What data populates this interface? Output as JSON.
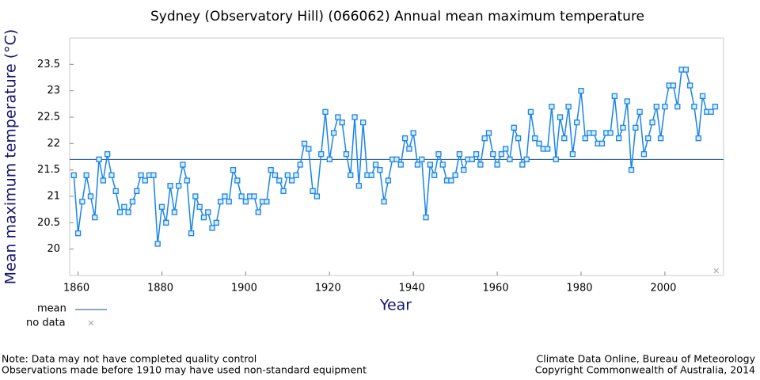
{
  "chart_data": {
    "type": "line",
    "title": "Sydney (Observatory Hill) (066062) Annual mean maximum temperature",
    "x_label": "Year",
    "y_label": "Mean maximum temperature (°C)",
    "xlim": [
      1858,
      2014
    ],
    "ylim": [
      19.5,
      24
    ],
    "xticks": [
      1860,
      1880,
      1900,
      1920,
      1940,
      1960,
      1980,
      2000
    ],
    "yticks": [
      20,
      20.5,
      21,
      21.5,
      22,
      22.5,
      23,
      23.5
    ],
    "x": [
      1859,
      1860,
      1861,
      1862,
      1863,
      1864,
      1865,
      1866,
      1867,
      1868,
      1869,
      1870,
      1871,
      1872,
      1873,
      1874,
      1875,
      1876,
      1877,
      1878,
      1879,
      1880,
      1881,
      1882,
      1883,
      1884,
      1885,
      1886,
      1887,
      1888,
      1889,
      1890,
      1891,
      1892,
      1893,
      1894,
      1895,
      1896,
      1897,
      1898,
      1899,
      1900,
      1901,
      1902,
      1903,
      1904,
      1905,
      1906,
      1907,
      1908,
      1909,
      1910,
      1911,
      1912,
      1913,
      1914,
      1915,
      1916,
      1917,
      1918,
      1919,
      1920,
      1921,
      1922,
      1923,
      1924,
      1925,
      1926,
      1927,
      1928,
      1929,
      1930,
      1931,
      1932,
      1933,
      1934,
      1935,
      1936,
      1937,
      1938,
      1939,
      1940,
      1941,
      1942,
      1943,
      1944,
      1945,
      1946,
      1947,
      1948,
      1949,
      1950,
      1951,
      1952,
      1953,
      1954,
      1955,
      1956,
      1957,
      1958,
      1959,
      1960,
      1961,
      1962,
      1963,
      1964,
      1965,
      1966,
      1967,
      1968,
      1969,
      1970,
      1971,
      1972,
      1973,
      1974,
      1975,
      1976,
      1977,
      1978,
      1979,
      1980,
      1981,
      1982,
      1983,
      1984,
      1985,
      1986,
      1987,
      1988,
      1989,
      1990,
      1991,
      1992,
      1993,
      1994,
      1995,
      1996,
      1997,
      1998,
      1999,
      2000,
      2001,
      2002,
      2003,
      2004,
      2005,
      2006,
      2007,
      2008,
      2009,
      2010,
      2011,
      2012
    ],
    "series": [
      {
        "color": "#1a84e8",
        "values": [
          21.4,
          20.3,
          20.9,
          21.4,
          21.0,
          20.6,
          21.7,
          21.3,
          21.8,
          21.4,
          21.1,
          20.7,
          20.8,
          20.7,
          20.9,
          21.1,
          21.4,
          21.3,
          21.4,
          21.4,
          20.1,
          20.8,
          20.5,
          21.2,
          20.7,
          21.2,
          21.6,
          21.3,
          20.3,
          21.0,
          20.8,
          20.6,
          20.7,
          20.4,
          20.5,
          20.9,
          21.0,
          20.9,
          21.5,
          21.3,
          21.0,
          20.9,
          21.0,
          21.0,
          20.7,
          20.9,
          20.9,
          21.5,
          21.4,
          21.3,
          21.1,
          21.4,
          21.3,
          21.4,
          21.6,
          22.0,
          21.9,
          21.1,
          21.0,
          21.8,
          22.6,
          21.7,
          22.2,
          22.5,
          22.4,
          21.8,
          21.4,
          22.5,
          21.2,
          22.4,
          21.4,
          21.4,
          21.6,
          21.5,
          20.9,
          21.3,
          21.7,
          21.7,
          21.6,
          22.1,
          21.9,
          22.2,
          21.6,
          21.7,
          20.6,
          21.6,
          21.4,
          21.8,
          21.6,
          21.3,
          21.3,
          21.4,
          21.8,
          21.5,
          21.7,
          21.7,
          21.8,
          21.6,
          22.1,
          22.2,
          21.8,
          21.6,
          21.8,
          21.9,
          21.7,
          22.3,
          22.1,
          21.6,
          21.7,
          22.6,
          22.1,
          22.0,
          21.9,
          21.9,
          22.7,
          21.7,
          22.5,
          22.1,
          22.7,
          21.8,
          22.4,
          23.0,
          22.1,
          22.2,
          22.2,
          22.0,
          22.0,
          22.2,
          22.2,
          22.9,
          22.1,
          22.3,
          22.8,
          21.5,
          22.3,
          22.6,
          21.8,
          22.1,
          22.4,
          22.7,
          22.1,
          22.7,
          23.1,
          23.1,
          22.7,
          23.4,
          23.4,
          23.1,
          22.7,
          22.1,
          22.9,
          22.6,
          22.6,
          22.7
        ]
      }
    ],
    "mean": {
      "name": "mean",
      "value": 21.7,
      "color": "#1a4f8a"
    },
    "no_data": {
      "name": "no data",
      "x": [
        2013
      ],
      "color": "#9aa4b0"
    },
    "notes": [
      "Note: Data may not have completed quality control",
      "Observations made before 1910 may have used non-standard equipment"
    ],
    "credits": [
      "Climate Data Online, Bureau of Meteorology",
      "Copyright Commonwealth of Australia, 2014"
    ]
  }
}
